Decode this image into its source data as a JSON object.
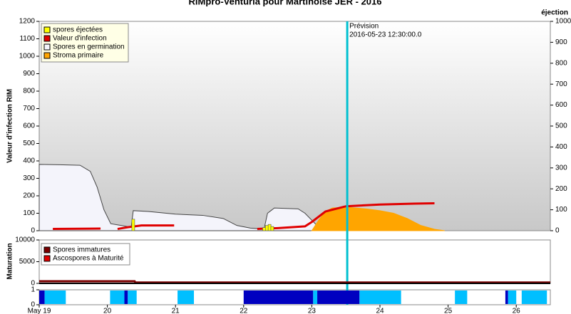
{
  "chart_data": [
    {
      "type": "combo",
      "title": "RIMpro-Venturia pour  Martinoise JER - 2016",
      "y_label": "Valeur d'infection RIM",
      "y2_label": "éjection",
      "xlim": [
        19,
        26.5
      ],
      "ylim": [
        0,
        1200
      ],
      "yticks": [
        0,
        100,
        200,
        300,
        400,
        500,
        600,
        700,
        800,
        900,
        1000,
        1100,
        1200
      ],
      "y2lim": [
        0,
        1000
      ],
      "y2ticks": [
        0,
        100,
        200,
        300,
        400,
        500,
        600,
        700,
        800,
        900,
        1000
      ],
      "series": [
        {
          "name": "spores éjectées",
          "type": "bar",
          "axis": "y2",
          "color": "#ffff00",
          "x": [
            20.38,
            22.3,
            22.34,
            22.38,
            22.42
          ],
          "values": [
            55,
            15,
            25,
            30,
            20
          ]
        },
        {
          "name": "Valeur d'infection",
          "type": "line",
          "color": "#e00000",
          "x": [
            19.2,
            19.9,
            20.0,
            20.15,
            20.3,
            20.5,
            20.98,
            21.5,
            22.2,
            22.5,
            22.9,
            23.0,
            23.2,
            23.5,
            24.0,
            24.5,
            24.8
          ],
          "values": [
            10,
            12,
            null,
            10,
            20,
            30,
            30,
            null,
            10,
            15,
            25,
            50,
            110,
            140,
            150,
            155,
            157
          ]
        },
        {
          "name": "Spores en germination",
          "type": "area",
          "color": "#f4f4fb",
          "x": [
            19.0,
            19.3,
            19.6,
            19.75,
            19.85,
            19.95,
            20.05,
            20.2,
            20.35,
            20.38,
            20.6,
            21.0,
            21.4,
            21.7,
            21.9,
            22.1,
            22.3,
            22.35,
            22.45,
            22.8,
            22.9,
            23.0,
            23.1,
            23.2,
            23.3
          ],
          "values": [
            380,
            378,
            375,
            340,
            250,
            120,
            40,
            30,
            20,
            115,
            110,
            95,
            88,
            70,
            30,
            15,
            10,
            100,
            130,
            125,
            100,
            60,
            20,
            5,
            0
          ]
        },
        {
          "name": "Stroma primaire",
          "type": "area",
          "color": "#ffa500",
          "x": [
            23.0,
            23.1,
            23.2,
            23.3,
            23.5,
            23.8,
            24.0,
            24.2,
            24.4,
            24.6,
            24.8,
            24.95
          ],
          "values": [
            0,
            60,
            110,
            130,
            135,
            125,
            115,
            100,
            70,
            30,
            8,
            0
          ]
        }
      ],
      "annotation": {
        "x": 23.52,
        "lines": [
          "Prévision",
          "2016-05-23 12:30:00.0"
        ],
        "color": "#00c0d0"
      }
    },
    {
      "type": "line",
      "y_label": "Maturation",
      "xlim": [
        19,
        26.5
      ],
      "ylim": [
        0,
        10000
      ],
      "yticks": [
        0,
        5000,
        10000
      ],
      "series": [
        {
          "name": "Spores immatures",
          "color": "#7a0000",
          "x": [
            19.0,
            20.4,
            20.41,
            26.5
          ],
          "values": [
            500,
            500,
            200,
            200
          ]
        },
        {
          "name": "Ascospores à Maturité",
          "color": "#e00000",
          "x": [
            19.0,
            26.5
          ],
          "values": [
            0,
            0
          ]
        }
      ]
    },
    {
      "type": "strip",
      "xlim": [
        19,
        26.5
      ],
      "ylim": [
        0,
        1
      ],
      "yticks": [
        0,
        1
      ],
      "xticks": [
        {
          "value": 19,
          "label": "May 19"
        },
        20,
        21,
        22,
        23,
        24,
        25,
        26
      ],
      "segments": [
        {
          "x": [
            19.0,
            19.08
          ],
          "color": "#0000c0"
        },
        {
          "x": [
            19.08,
            19.39
          ],
          "color": "#00bfff"
        },
        {
          "x": [
            20.04,
            20.25
          ],
          "color": "#00bfff"
        },
        {
          "x": [
            20.25,
            20.3
          ],
          "color": "#0000c0"
        },
        {
          "x": [
            20.3,
            20.43
          ],
          "color": "#00bfff"
        },
        {
          "x": [
            21.03,
            21.27
          ],
          "color": "#00bfff"
        },
        {
          "x": [
            22.0,
            23.02
          ],
          "color": "#0000c0"
        },
        {
          "x": [
            23.02,
            23.08
          ],
          "color": "#00bfff"
        },
        {
          "x": [
            23.08,
            23.7
          ],
          "color": "#0000c0"
        },
        {
          "x": [
            23.7,
            24.31
          ],
          "color": "#00bfff"
        },
        {
          "x": [
            25.1,
            25.28
          ],
          "color": "#00bfff"
        },
        {
          "x": [
            25.84,
            25.88
          ],
          "color": "#0000c0"
        },
        {
          "x": [
            25.88,
            26.0
          ],
          "color": "#00bfff"
        },
        {
          "x": [
            26.08,
            26.45
          ],
          "color": "#00bfff"
        }
      ]
    }
  ]
}
